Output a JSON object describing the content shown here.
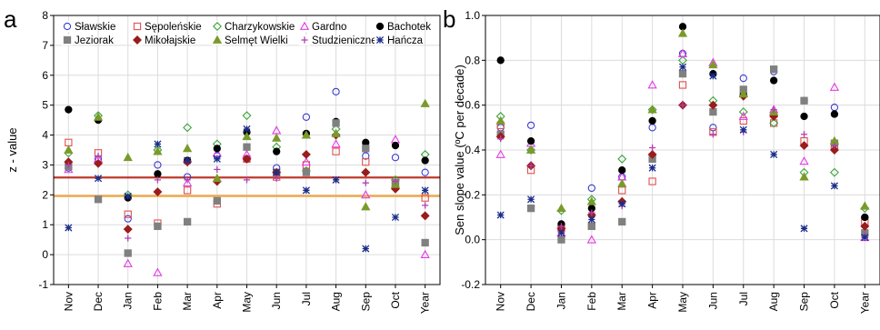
{
  "chart_data": [
    {
      "type": "scatter",
      "panel_label": "a",
      "ylabel": "z - value",
      "xlabel": "",
      "categories": [
        "Nov",
        "Dec",
        "Jan",
        "Feb",
        "Mar",
        "Apr",
        "May",
        "Jun",
        "Jul",
        "Aug",
        "Sep",
        "Oct",
        "Year"
      ],
      "ylim": [
        -1,
        8
      ],
      "yticks": [
        -1,
        0,
        1,
        2,
        3,
        4,
        5,
        6,
        7,
        8
      ],
      "grid": true,
      "legend_position": "top",
      "reference_lines": [
        {
          "value": 2.58,
          "color": "#c0392b"
        },
        {
          "value": 1.96,
          "color": "#f0a640"
        }
      ],
      "series": [
        {
          "name": "Sławskie",
          "marker": "open-circle",
          "color": "#3b3bd1",
          "values": [
            2.9,
            3.2,
            1.2,
            3.0,
            2.6,
            3.3,
            3.2,
            2.9,
            4.6,
            5.45,
            3.3,
            3.25,
            2.75
          ]
        },
        {
          "name": "Sępoleńskie",
          "marker": "open-square",
          "color": "#e05050",
          "values": [
            3.75,
            3.4,
            1.35,
            1.05,
            2.15,
            1.7,
            3.2,
            2.6,
            3.0,
            3.45,
            3.1,
            2.4,
            1.9
          ]
        },
        {
          "name": "Charzykowskie",
          "marker": "open-diamond",
          "color": "#3aa33a",
          "values": [
            3.4,
            4.65,
            2.0,
            3.5,
            4.25,
            3.7,
            4.65,
            3.6,
            2.8,
            4.2,
            2.75,
            2.5,
            3.35
          ]
        },
        {
          "name": "Gardno",
          "marker": "open-triangle",
          "color": "#e33be3",
          "values": [
            2.85,
            3.2,
            -0.3,
            -0.6,
            2.4,
            3.4,
            3.35,
            4.15,
            3.1,
            3.7,
            2.0,
            3.85,
            0.0
          ]
        },
        {
          "name": "Bachotek",
          "marker": "filled-circle",
          "color": "#000000",
          "values": [
            4.85,
            4.5,
            1.9,
            2.7,
            3.15,
            3.55,
            4.1,
            3.45,
            4.05,
            4.45,
            3.75,
            3.65,
            3.15
          ]
        },
        {
          "name": "Jeziorak",
          "marker": "filled-square",
          "color": "#808080",
          "values": [
            2.95,
            1.85,
            0.05,
            0.95,
            1.1,
            1.8,
            3.6,
            2.75,
            2.75,
            4.4,
            3.55,
            2.4,
            0.4
          ]
        },
        {
          "name": "Mikołajskie",
          "marker": "filled-diamond",
          "color": "#9b1c1c",
          "values": [
            3.1,
            3.05,
            0.85,
            2.1,
            3.1,
            2.45,
            3.2,
            2.75,
            3.35,
            4.0,
            2.75,
            2.2,
            1.3
          ]
        },
        {
          "name": "Selmęt Wielki",
          "marker": "filled-triangle",
          "color": "#7a9a2a",
          "values": [
            3.5,
            4.6,
            3.25,
            3.45,
            3.55,
            2.55,
            3.95,
            3.9,
            4.0,
            4.05,
            1.6,
            2.35,
            5.05
          ]
        },
        {
          "name": "Studzieniczne",
          "marker": "plus",
          "color": "#b03fb0",
          "values": [
            3.0,
            3.3,
            0.55,
            2.5,
            2.5,
            2.85,
            2.5,
            2.55,
            2.15,
            2.5,
            2.4,
            2.45,
            1.65
          ]
        },
        {
          "name": "Hańcza",
          "marker": "star",
          "color": "#1a2d8a",
          "values": [
            0.9,
            2.55,
            1.95,
            3.7,
            3.15,
            3.2,
            4.2,
            2.75,
            2.15,
            2.5,
            0.2,
            1.25,
            2.15
          ]
        }
      ]
    },
    {
      "type": "scatter",
      "panel_label": "b",
      "ylabel": "Sen slope value (ºC per decade)",
      "xlabel": "",
      "categories": [
        "Nov",
        "Dec",
        "Jan",
        "Feb",
        "Mar",
        "Apr",
        "May",
        "Jun",
        "Jul",
        "Aug",
        "Sep",
        "Oct",
        "Year"
      ],
      "ylim": [
        -0.2,
        1.0
      ],
      "yticks": [
        -0.2,
        0.0,
        0.2,
        0.4,
        0.6,
        0.8,
        1.0
      ],
      "grid": true,
      "series": [
        {
          "name": "Sławskie",
          "marker": "open-circle",
          "color": "#3b3bd1",
          "values": [
            0.5,
            0.51,
            0.06,
            0.23,
            0.28,
            0.5,
            0.83,
            0.5,
            0.72,
            0.75,
            0.62,
            0.59,
            0.1
          ]
        },
        {
          "name": "Sępoleńskie",
          "marker": "open-square",
          "color": "#e05050",
          "values": [
            0.51,
            0.31,
            0.05,
            0.06,
            0.22,
            0.26,
            0.69,
            0.48,
            0.53,
            0.52,
            0.44,
            0.42,
            0.08
          ]
        },
        {
          "name": "Charzykowskie",
          "marker": "open-diamond",
          "color": "#3aa33a",
          "values": [
            0.55,
            0.4,
            0.13,
            0.18,
            0.36,
            0.58,
            0.8,
            0.62,
            0.57,
            0.52,
            0.3,
            0.3,
            0.14
          ]
        },
        {
          "name": "Gardno",
          "marker": "open-triangle",
          "color": "#e33be3",
          "values": [
            0.38,
            0.43,
            0.03,
            0.0,
            0.28,
            0.69,
            0.83,
            0.79,
            0.55,
            0.58,
            0.35,
            0.68,
            0.01
          ]
        },
        {
          "name": "Bachotek",
          "marker": "filled-circle",
          "color": "#000000",
          "values": [
            0.8,
            0.44,
            0.07,
            0.14,
            0.31,
            0.53,
            0.95,
            0.74,
            0.65,
            0.71,
            0.55,
            0.56,
            0.1
          ]
        },
        {
          "name": "Jeziorak",
          "marker": "filled-square",
          "color": "#808080",
          "values": [
            0.47,
            0.14,
            0.0,
            0.06,
            0.08,
            0.36,
            0.74,
            0.57,
            0.67,
            0.76,
            0.62,
            0.43,
            0.03
          ]
        },
        {
          "name": "Mikołajskie",
          "marker": "filled-diamond",
          "color": "#9b1c1c",
          "values": [
            0.46,
            0.33,
            0.05,
            0.11,
            0.17,
            0.38,
            0.6,
            0.6,
            0.64,
            0.55,
            0.42,
            0.4,
            0.06
          ]
        },
        {
          "name": "Selmęt Wielki",
          "marker": "filled-triangle",
          "color": "#7a9a2a",
          "values": [
            0.53,
            0.4,
            0.14,
            0.17,
            0.25,
            0.58,
            0.92,
            0.78,
            0.65,
            0.57,
            0.28,
            0.44,
            0.15
          ]
        },
        {
          "name": "Studzieniczne",
          "marker": "plus",
          "color": "#b03fb0",
          "values": [
            0.45,
            0.33,
            0.06,
            0.12,
            0.15,
            0.41,
            0.6,
            0.47,
            0.48,
            0.58,
            0.47,
            0.42,
            0.02
          ]
        },
        {
          "name": "Hańcza",
          "marker": "star",
          "color": "#1a2d8a",
          "values": [
            0.11,
            0.18,
            0.03,
            0.09,
            0.16,
            0.32,
            0.77,
            0.73,
            0.49,
            0.38,
            0.05,
            0.24,
            0.01
          ]
        }
      ]
    }
  ]
}
